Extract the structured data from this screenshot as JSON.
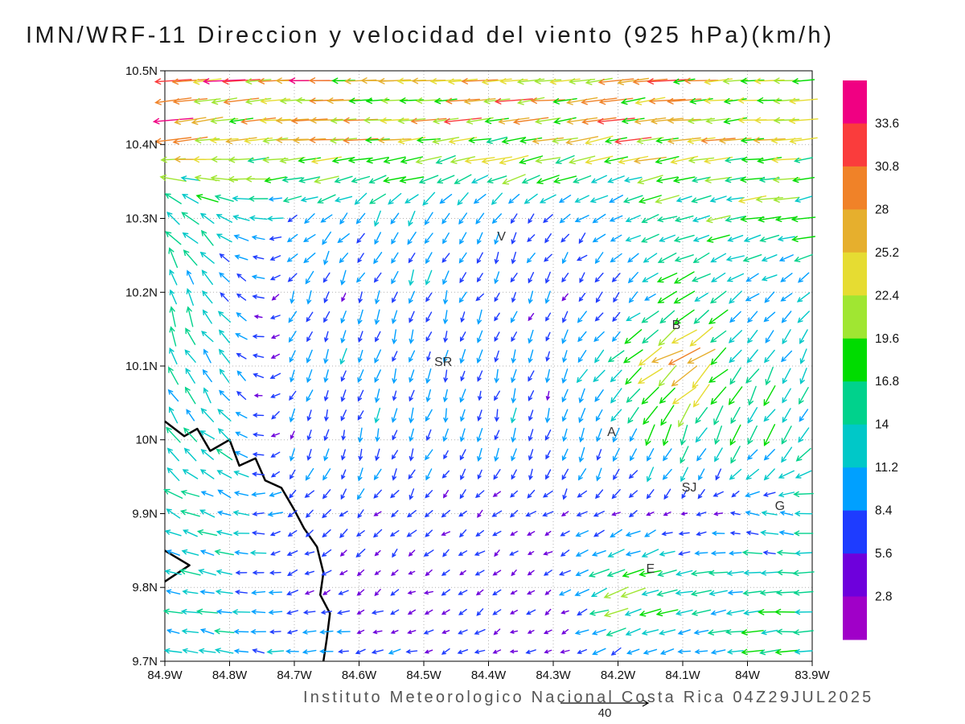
{
  "footer": {
    "credit": "Instituto Meteorologico Nacional Costa Rica 04Z29JUL2025"
  },
  "chart_data": {
    "type": "vector-field-map",
    "title": "IMN/WRF-11 Direccion y velocidad del viento (925 hPa)(km/h)",
    "units": "km/h",
    "level": "925 hPa",
    "x_axis": {
      "ticks": [
        "84.9W",
        "84.8W",
        "84.7W",
        "84.6W",
        "84.5W",
        "84.4W",
        "84.3W",
        "84.2W",
        "84.1W",
        "84W",
        "83.9W"
      ],
      "lon_range": [
        84.9,
        83.9
      ]
    },
    "y_axis": {
      "ticks": [
        "10.5N",
        "10.4N",
        "10.3N",
        "10.2N",
        "10.1N",
        "10N",
        "9.9N",
        "9.8N",
        "9.7N"
      ],
      "lat_range": [
        9.7,
        10.5
      ]
    },
    "grid_lines": {
      "style": "dotted",
      "color": "#b0b0b0",
      "lon_step": 0.1,
      "lat_step": 0.1
    },
    "colorbar": {
      "labels_top_to_bottom": [
        "33.6",
        "30.8",
        "28",
        "25.2",
        "22.4",
        "19.6",
        "16.8",
        "14",
        "11.2",
        "8.4",
        "5.6",
        "2.8"
      ],
      "boundaries_ascending": [
        2.8,
        5.6,
        8.4,
        11.2,
        14,
        16.8,
        19.6,
        22.4,
        25.2,
        28,
        30.8,
        33.6
      ],
      "colors_low_to_high": [
        "#A000C8",
        "#6E00DC",
        "#1E3CFF",
        "#00A0FF",
        "#00C8C8",
        "#00D28C",
        "#00DC00",
        "#A0E632",
        "#E6DC32",
        "#E6AF2D",
        "#F08228",
        "#FA3C3C",
        "#F00082"
      ]
    },
    "wind_grid": {
      "lons": [
        84.9,
        84.8,
        84.7,
        84.6,
        84.5,
        84.4,
        84.3,
        84.2,
        84.1,
        84.0,
        83.9
      ],
      "lats": [
        10.5,
        10.4,
        10.3,
        10.2,
        10.1,
        10.0,
        9.9,
        9.8,
        9.7
      ],
      "u_kmh": [
        [
          -31,
          -30,
          -28,
          -26,
          -25,
          -25,
          -26,
          -27,
          -25,
          -22,
          -19
        ],
        [
          -26,
          -24,
          -23,
          -23,
          -24,
          -24,
          -23,
          -24,
          -23,
          -21,
          -19
        ],
        [
          -10,
          -12,
          -9,
          -6,
          -5,
          -5,
          -6,
          -9,
          -13,
          -16,
          -18
        ],
        [
          -5,
          -7,
          -4,
          -3,
          -3,
          -3,
          -3,
          -5,
          -14,
          -8,
          -7
        ],
        [
          -5,
          -7,
          -3,
          -3,
          -2,
          -3,
          -2,
          -11,
          -24,
          -7,
          -5
        ],
        [
          -9,
          -10,
          -3,
          -2,
          -3,
          -2,
          -3,
          -4,
          -5,
          -7,
          -9
        ],
        [
          -13,
          -12,
          -6,
          -4,
          -5,
          -4,
          -5,
          -6,
          -4,
          -7,
          -15
        ],
        [
          -12,
          -12,
          -6,
          -4,
          -4,
          -5,
          -4,
          -20,
          -14,
          -16,
          -14
        ],
        [
          -12,
          -12,
          -10,
          -8,
          -6,
          -5,
          -4,
          -6,
          -9,
          -13,
          -15
        ]
      ],
      "v_kmh": [
        [
          -2,
          -3,
          -1,
          0,
          -1,
          -2,
          -2,
          -3,
          -2,
          -1,
          0
        ],
        [
          -4,
          -3,
          -2,
          -2,
          -3,
          -3,
          -4,
          -4,
          -3,
          -2,
          -2
        ],
        [
          12,
          6,
          -4,
          -8,
          -9,
          -8,
          -6,
          -5,
          -4,
          -3,
          -2
        ],
        [
          15,
          7,
          -7,
          -8,
          -8,
          -7,
          -6,
          -6,
          -8,
          -7,
          -6
        ],
        [
          14,
          9,
          -8,
          -9,
          -9,
          -8,
          -8,
          -9,
          -17,
          -13,
          -9
        ],
        [
          11,
          7,
          -8,
          -9,
          -9,
          -8,
          -9,
          -10,
          -16,
          -14,
          -11
        ],
        [
          5,
          3,
          -4,
          -5,
          -4,
          -3,
          -4,
          -3,
          -2,
          2,
          1
        ],
        [
          3,
          1,
          -2,
          -3,
          -2,
          -3,
          -2,
          -7,
          -2,
          -2,
          0
        ],
        [
          1,
          2,
          0,
          -1,
          -2,
          -2,
          -2,
          -3,
          -2,
          -2,
          -1
        ]
      ]
    },
    "stations": [
      {
        "label": "V",
        "lon": 84.38,
        "lat": 10.27
      },
      {
        "label": "SR",
        "lon": 84.47,
        "lat": 10.1
      },
      {
        "label": "B",
        "lon": 84.11,
        "lat": 10.15
      },
      {
        "label": "A",
        "lon": 84.21,
        "lat": 10.005
      },
      {
        "label": "SJ",
        "lon": 84.09,
        "lat": 9.93
      },
      {
        "label": "G",
        "lon": 83.95,
        "lat": 9.905
      },
      {
        "label": "E",
        "lon": 84.15,
        "lat": 9.82
      }
    ],
    "coastline_segments": [
      [
        [
          84.9,
          10.025
        ],
        [
          84.87,
          10.005
        ],
        [
          84.85,
          10.015
        ],
        [
          84.83,
          9.985
        ],
        [
          84.8,
          10.0
        ],
        [
          84.785,
          9.965
        ],
        [
          84.76,
          9.975
        ],
        [
          84.745,
          9.945
        ],
        [
          84.72,
          9.935
        ],
        [
          84.7,
          9.905
        ],
        [
          84.685,
          9.88
        ],
        [
          84.665,
          9.855
        ],
        [
          84.655,
          9.82
        ],
        [
          84.66,
          9.79
        ],
        [
          84.645,
          9.765
        ],
        [
          84.65,
          9.73
        ],
        [
          84.655,
          9.7
        ]
      ],
      [
        [
          84.9,
          9.85
        ],
        [
          84.862,
          9.83
        ],
        [
          84.9,
          9.808
        ]
      ]
    ],
    "reference_vector": {
      "value_kmh": 40,
      "label": "40"
    }
  }
}
